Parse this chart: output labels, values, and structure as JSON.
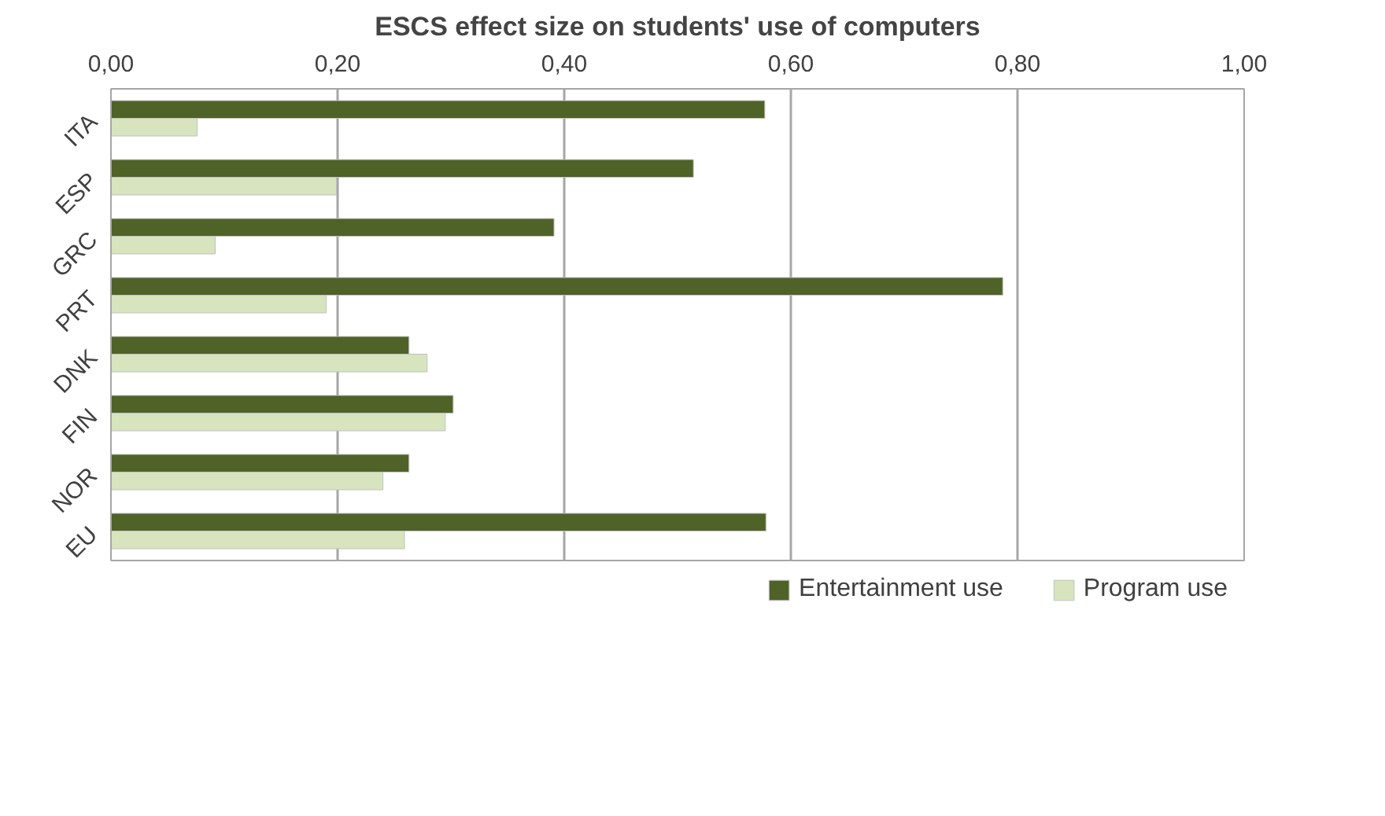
{
  "chart_data": {
    "type": "bar",
    "orientation": "horizontal",
    "title": "ESCS effect size on students' use of computers",
    "categories": [
      "ITA",
      "ESP",
      "GRC",
      "PRT",
      "DNK",
      "FIN",
      "NOR",
      "EU"
    ],
    "series": [
      {
        "name": "Entertainment use",
        "color": "#4f6228",
        "values": [
          0.577,
          0.514,
          0.391,
          0.787,
          0.263,
          0.302,
          0.263,
          0.578
        ]
      },
      {
        "name": "Program use",
        "color": "#d7e4bd",
        "values": [
          0.076,
          0.199,
          0.092,
          0.19,
          0.279,
          0.295,
          0.24,
          0.259
        ]
      }
    ],
    "xlim": [
      0,
      1
    ],
    "xticks": [
      {
        "value": 0,
        "label": "0,00"
      },
      {
        "value": 0.2,
        "label": "0,20"
      },
      {
        "value": 0.4,
        "label": "0,40"
      },
      {
        "value": 0.6,
        "label": "0,60"
      },
      {
        "value": 0.8,
        "label": "0,80"
      },
      {
        "value": 1,
        "label": "1,00"
      }
    ],
    "grid": "x",
    "legend": "bottom"
  }
}
